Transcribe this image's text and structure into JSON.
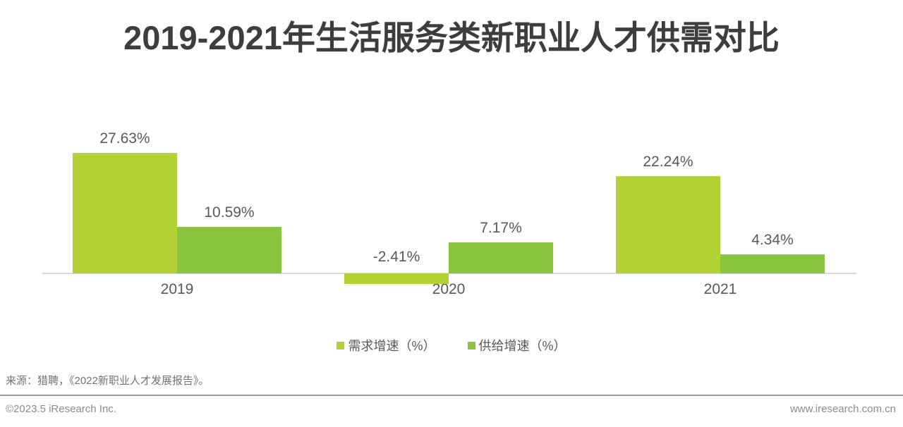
{
  "title": "2019-2021年生活服务类新职业人才供需对比",
  "chart_data": {
    "type": "bar",
    "title": "2019-2021年生活服务类新职业人才供需对比",
    "categories": [
      "2019",
      "2020",
      "2021"
    ],
    "series": [
      {
        "key": "demand",
        "name": "需求增速（%）",
        "color": "#b2d235",
        "values": [
          27.63,
          -2.41,
          22.24
        ]
      },
      {
        "key": "supply",
        "name": "供给增速（%）",
        "color": "#8ac43f",
        "values": [
          10.59,
          7.17,
          4.34
        ]
      }
    ],
    "value_label_suffix": "%",
    "ylim": [
      -5,
      30
    ],
    "grid": false,
    "y_axis_visible": false,
    "x_axis_line_color": "#d9d9d9",
    "legend_position": "bottom"
  },
  "source_note": "来源：猎聘，《2022新职业人才发展报告》。",
  "footer": {
    "copyright": "©2023.5 iResearch Inc.",
    "website": "www.iresearch.com.cn"
  }
}
